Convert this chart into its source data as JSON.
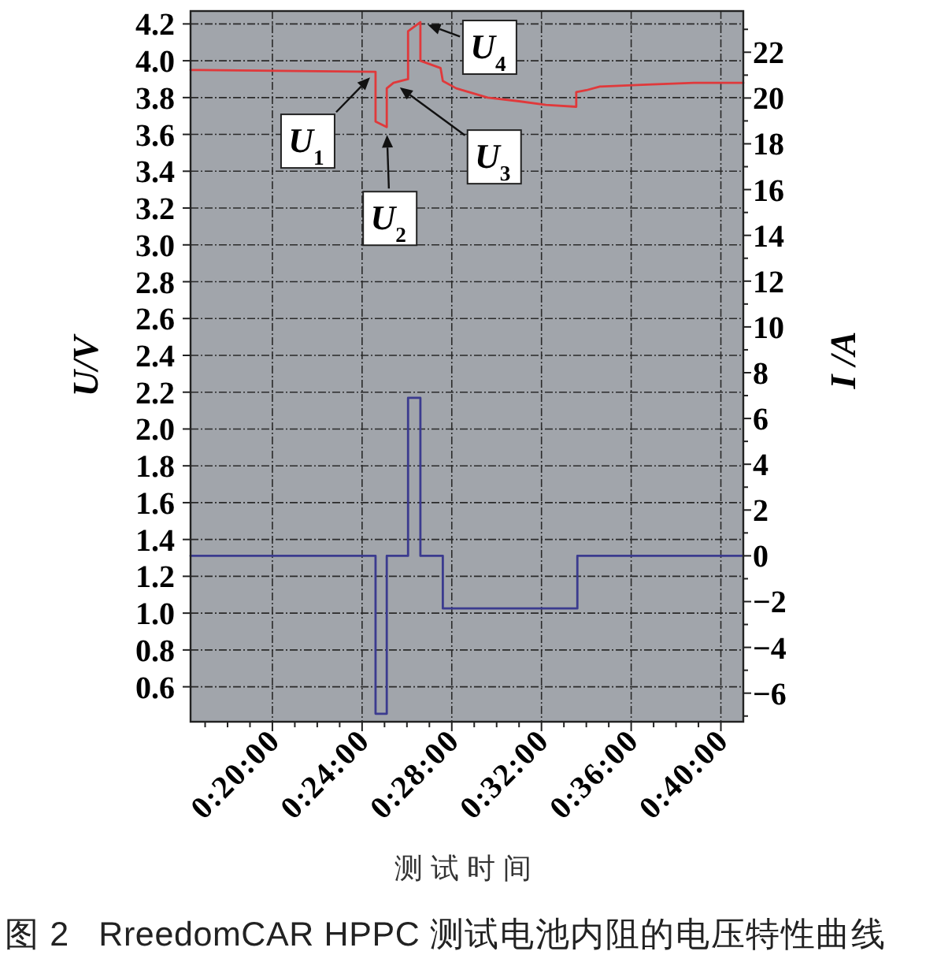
{
  "chart_data": {
    "type": "line",
    "xlabel": "测试时间",
    "ylabel": "U/V",
    "y2label": "I /A",
    "xlim": [
      16.35,
      41.0
    ],
    "xticks": [
      {
        "value": 17,
        "label": null
      },
      {
        "value": 18,
        "label": null
      },
      {
        "value": 19,
        "label": null
      },
      {
        "value": 20,
        "label": "0:20:00"
      },
      {
        "value": 21,
        "label": null
      },
      {
        "value": 22,
        "label": null
      },
      {
        "value": 23,
        "label": null
      },
      {
        "value": 24,
        "label": "0:24:00"
      },
      {
        "value": 25,
        "label": null
      },
      {
        "value": 26,
        "label": null
      },
      {
        "value": 27,
        "label": null
      },
      {
        "value": 28,
        "label": "0:28:00"
      },
      {
        "value": 29,
        "label": null
      },
      {
        "value": 30,
        "label": null
      },
      {
        "value": 31,
        "label": null
      },
      {
        "value": 32,
        "label": "0:32:00"
      },
      {
        "value": 33,
        "label": null
      },
      {
        "value": 34,
        "label": null
      },
      {
        "value": 35,
        "label": null
      },
      {
        "value": 36,
        "label": "0:36:00"
      },
      {
        "value": 37,
        "label": null
      },
      {
        "value": 38,
        "label": null
      },
      {
        "value": 39,
        "label": null
      },
      {
        "value": 40,
        "label": "0:40:00"
      }
    ],
    "ylim": [
      0.41,
      4.27
    ],
    "yticks": [
      0.6,
      0.8,
      {
        "value": 1,
        "label": "1.0"
      },
      1.2,
      1.4,
      1.6,
      1.8,
      {
        "value": 2,
        "label": "2.0"
      },
      2.2,
      2.4,
      2.6,
      2.8,
      {
        "value": 3,
        "label": "3.0"
      },
      3.2,
      3.4,
      3.6,
      3.8,
      {
        "value": 4,
        "label": "4.0"
      },
      4.2
    ],
    "y2lim": [
      -7.25,
      23.8
    ],
    "y2ticks": [
      {
        "value": -7,
        "label": null
      },
      -6,
      {
        "value": -5,
        "label": null
      },
      -4,
      {
        "value": -3,
        "label": null
      },
      -2,
      {
        "value": -1,
        "label": null
      },
      0,
      {
        "value": 1,
        "label": null
      },
      2,
      {
        "value": 3,
        "label": null
      },
      4,
      {
        "value": 5,
        "label": null
      },
      6,
      {
        "value": 7,
        "label": null
      },
      8,
      {
        "value": 9,
        "label": null
      },
      10,
      {
        "value": 11,
        "label": null
      },
      12,
      {
        "value": 13,
        "label": null
      },
      14,
      {
        "value": 15,
        "label": null
      },
      16,
      {
        "value": 17,
        "label": null
      },
      18,
      {
        "value": 19,
        "label": null
      },
      20,
      {
        "value": 21,
        "label": null
      },
      22,
      {
        "value": 23,
        "label": null
      }
    ],
    "grid": true,
    "series": [
      {
        "color": "#e0393b",
        "axis": "y",
        "x": [
          16.35,
          24.6,
          24.6,
          25.1,
          25.1,
          25.4,
          26.05,
          26.05,
          26.6,
          26.6,
          27.5,
          27.6,
          28.2,
          29.6,
          31.0,
          32.2,
          33.55,
          33.55,
          34.0,
          34.6,
          36.7,
          38.8,
          41.0
        ],
        "values": [
          3.95,
          3.94,
          3.67,
          3.64,
          3.85,
          3.88,
          3.9,
          4.16,
          4.21,
          4.0,
          3.96,
          3.89,
          3.85,
          3.8,
          3.78,
          3.76,
          3.75,
          3.83,
          3.84,
          3.86,
          3.87,
          3.88,
          3.88
        ]
      },
      {
        "color": "#3b3b8f",
        "axis": "y2",
        "x": [
          16.35,
          24.6,
          24.6,
          25.1,
          25.1,
          26.05,
          26.05,
          26.6,
          26.6,
          27.6,
          27.6,
          33.6,
          33.6,
          41.0
        ],
        "values": [
          0,
          0,
          -6.9,
          -6.9,
          0,
          0,
          6.9,
          6.9,
          0,
          0,
          -2.3,
          -2.3,
          0,
          0
        ]
      }
    ],
    "annotations": [
      {
        "text": "U$_{1}$",
        "x": 24.6,
        "y": 3.94
      },
      {
        "text": "U$_{2}$",
        "x": 25.1,
        "y": 3.64
      },
      {
        "text": "U$_{3}$",
        "x": 25.4,
        "y": 3.88
      },
      {
        "text": "U$_{4}$",
        "x": 26.6,
        "y": 4.21
      },
      "图 2   RreedomCAR HPPC 测试电池内阻的电压特性曲线"
    ]
  }
}
